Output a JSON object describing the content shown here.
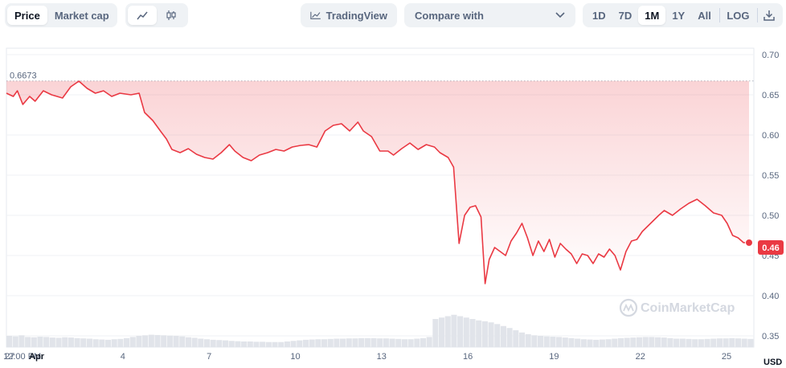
{
  "toolbar": {
    "metric_tabs": [
      {
        "label": "Price",
        "active": true
      },
      {
        "label": "Market cap",
        "active": false
      }
    ],
    "chart_style_icons": [
      "line-chart-icon",
      "candlestick-icon"
    ],
    "tradingview_label": "TradingView",
    "compare_label": "Compare with",
    "ranges": [
      {
        "label": "1D",
        "active": false
      },
      {
        "label": "7D",
        "active": false
      },
      {
        "label": "1M",
        "active": true
      },
      {
        "label": "1Y",
        "active": false
      },
      {
        "label": "All",
        "active": false
      }
    ],
    "log_label": "LOG"
  },
  "watermark": "CoinMarketCap",
  "colors": {
    "line": "#ea3943",
    "accent_bg": "#ea3943",
    "volume": "#e1e4ea",
    "grid": "#eff2f5"
  },
  "chart_data": {
    "type": "area",
    "currency": "USD",
    "current_value": "0.46",
    "reference_value": "0.6673",
    "ylim": [
      0.34,
      0.7
    ],
    "yticks": [
      "0.70",
      "0.65",
      "0.60",
      "0.55",
      "0.50",
      "0.45",
      "0.40",
      "0.35"
    ],
    "x_ticks": [
      {
        "label": "27",
        "day": 0,
        "bold": false
      },
      {
        "label": "12:00 PM",
        "day": 0.5,
        "bold": false
      },
      {
        "label": "Apr",
        "day": 1,
        "bold": true
      },
      {
        "label": "4",
        "day": 4,
        "bold": false
      },
      {
        "label": "7",
        "day": 7,
        "bold": false
      },
      {
        "label": "10",
        "day": 10,
        "bold": false
      },
      {
        "label": "13",
        "day": 13,
        "bold": false
      },
      {
        "label": "16",
        "day": 16,
        "bold": false
      },
      {
        "label": "19",
        "day": 19,
        "bold": false
      },
      {
        "label": "22",
        "day": 22,
        "bold": false
      },
      {
        "label": "25",
        "day": 25,
        "bold": false
      }
    ],
    "x_range_days": [
      -0.05,
      25.95
    ],
    "series": [
      {
        "points": [
          [
            -0.05,
            0.652
          ],
          [
            0.2,
            0.648
          ],
          [
            0.35,
            0.655
          ],
          [
            0.55,
            0.638
          ],
          [
            0.8,
            0.648
          ],
          [
            1.0,
            0.642
          ],
          [
            1.3,
            0.655
          ],
          [
            1.6,
            0.65
          ],
          [
            2.0,
            0.646
          ],
          [
            2.3,
            0.66
          ],
          [
            2.6,
            0.667
          ],
          [
            2.9,
            0.658
          ],
          [
            3.2,
            0.652
          ],
          [
            3.5,
            0.655
          ],
          [
            3.8,
            0.648
          ],
          [
            4.1,
            0.652
          ],
          [
            4.5,
            0.65
          ],
          [
            4.8,
            0.652
          ],
          [
            5.0,
            0.628
          ],
          [
            5.3,
            0.618
          ],
          [
            5.6,
            0.604
          ],
          [
            5.8,
            0.595
          ],
          [
            6.0,
            0.582
          ],
          [
            6.3,
            0.578
          ],
          [
            6.6,
            0.583
          ],
          [
            6.9,
            0.576
          ],
          [
            7.2,
            0.572
          ],
          [
            7.5,
            0.57
          ],
          [
            7.8,
            0.578
          ],
          [
            8.1,
            0.588
          ],
          [
            8.3,
            0.58
          ],
          [
            8.6,
            0.572
          ],
          [
            8.9,
            0.568
          ],
          [
            9.2,
            0.575
          ],
          [
            9.5,
            0.578
          ],
          [
            9.8,
            0.582
          ],
          [
            10.1,
            0.58
          ],
          [
            10.4,
            0.585
          ],
          [
            10.7,
            0.587
          ],
          [
            11.0,
            0.588
          ],
          [
            11.3,
            0.585
          ],
          [
            11.6,
            0.605
          ],
          [
            11.9,
            0.612
          ],
          [
            12.2,
            0.614
          ],
          [
            12.5,
            0.605
          ],
          [
            12.8,
            0.616
          ],
          [
            13.0,
            0.605
          ],
          [
            13.3,
            0.598
          ],
          [
            13.6,
            0.58
          ],
          [
            13.9,
            0.58
          ],
          [
            14.1,
            0.575
          ],
          [
            14.4,
            0.583
          ],
          [
            14.7,
            0.59
          ],
          [
            15.0,
            0.582
          ],
          [
            15.3,
            0.588
          ],
          [
            15.6,
            0.585
          ],
          [
            15.8,
            0.578
          ],
          [
            16.1,
            0.572
          ],
          [
            16.3,
            0.56
          ],
          [
            16.5,
            0.465
          ],
          [
            16.7,
            0.5
          ],
          [
            16.9,
            0.51
          ],
          [
            17.1,
            0.512
          ],
          [
            17.3,
            0.498
          ],
          [
            17.45,
            0.415
          ],
          [
            17.6,
            0.445
          ],
          [
            17.8,
            0.46
          ],
          [
            18.0,
            0.455
          ],
          [
            18.2,
            0.45
          ],
          [
            18.4,
            0.468
          ],
          [
            18.6,
            0.478
          ],
          [
            18.8,
            0.49
          ],
          [
            19.0,
            0.472
          ],
          [
            19.2,
            0.45
          ],
          [
            19.4,
            0.468
          ],
          [
            19.6,
            0.455
          ],
          [
            19.8,
            0.47
          ],
          [
            20.0,
            0.448
          ],
          [
            20.2,
            0.465
          ],
          [
            20.4,
            0.458
          ],
          [
            20.6,
            0.452
          ],
          [
            20.8,
            0.44
          ],
          [
            21.0,
            0.452
          ],
          [
            21.2,
            0.45
          ],
          [
            21.4,
            0.44
          ],
          [
            21.6,
            0.452
          ],
          [
            21.8,
            0.448
          ],
          [
            22.0,
            0.458
          ],
          [
            22.2,
            0.45
          ],
          [
            22.4,
            0.432
          ],
          [
            22.6,
            0.455
          ],
          [
            22.8,
            0.468
          ],
          [
            23.0,
            0.47
          ],
          [
            23.2,
            0.48
          ],
          [
            23.5,
            0.49
          ],
          [
            23.8,
            0.5
          ],
          [
            24.0,
            0.506
          ],
          [
            24.3,
            0.5
          ],
          [
            24.6,
            0.508
          ],
          [
            24.9,
            0.515
          ],
          [
            25.2,
            0.52
          ],
          [
            25.5,
            0.512
          ],
          [
            25.8,
            0.503
          ],
          [
            26.1,
            0.5
          ],
          [
            26.3,
            0.49
          ],
          [
            26.5,
            0.475
          ],
          [
            26.7,
            0.472
          ],
          [
            26.9,
            0.466
          ],
          [
            27.1,
            0.466
          ]
        ]
      }
    ],
    "volume": [
      0.4,
      0.38,
      0.42,
      0.36,
      0.35,
      0.37,
      0.36,
      0.34,
      0.33,
      0.35,
      0.34,
      0.32,
      0.31,
      0.3,
      0.28,
      0.27,
      0.26,
      0.28,
      0.29,
      0.32,
      0.36,
      0.4,
      0.42,
      0.44,
      0.43,
      0.42,
      0.41,
      0.4,
      0.38,
      0.35,
      0.33,
      0.3,
      0.28,
      0.26,
      0.25,
      0.24,
      0.22,
      0.21,
      0.2,
      0.2,
      0.19,
      0.19,
      0.18,
      0.18,
      0.18,
      0.2,
      0.22,
      0.24,
      0.26,
      0.27,
      0.28,
      0.28,
      0.29,
      0.3,
      0.3,
      0.31,
      0.31,
      0.32,
      0.32,
      0.32,
      0.31,
      0.31,
      0.3,
      0.29,
      0.28,
      0.28,
      0.3,
      0.32,
      0.36,
      1.0,
      1.05,
      1.1,
      1.15,
      1.1,
      1.05,
      1.0,
      0.95,
      0.92,
      0.88,
      0.82,
      0.75,
      0.68,
      0.6,
      0.52,
      0.46,
      0.42,
      0.4,
      0.38,
      0.37,
      0.36,
      0.34,
      0.32,
      0.3,
      0.28,
      0.27,
      0.26,
      0.27,
      0.28,
      0.3,
      0.32,
      0.33,
      0.34,
      0.35,
      0.36,
      0.36,
      0.35,
      0.34,
      0.32,
      0.3,
      0.3,
      0.29,
      0.28,
      0.28,
      0.29,
      0.3,
      0.31,
      0.31,
      0.32,
      0.31,
      0.3,
      0.29
    ]
  }
}
